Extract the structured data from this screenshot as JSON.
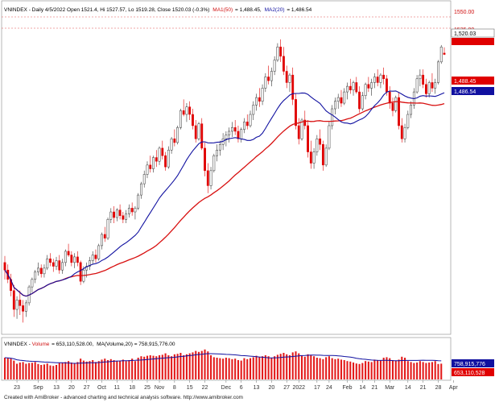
{
  "colors": {
    "up": "#ffffff",
    "down": "#e00000",
    "outline": "#333333",
    "ma50": "#d81010",
    "ma20": "#1010a0",
    "volume": "#e31a1a",
    "volume_ma": "#1010a0",
    "header_red": "#d01010",
    "header_blue": "#1010a0",
    "frame": "#888888"
  },
  "chart_data": {
    "type": "candlestick",
    "symbol": "VNINDEX",
    "period": "Daily",
    "header": {
      "prefix": "VNINDEX - Daily 4/5/2022 Open 1521.4, Hi 1527.57, Lo 1519.28, Close 1520.03 (-0.3%)",
      "ma50_label": "MA1(50)",
      "ma50_value": "= 1,488.45,",
      "ma20_label": "MA2(20)",
      "ma20_value": "= 1,486.54"
    },
    "volume_header": {
      "prefix": "VNINDEX - ",
      "vol_label": "Volume",
      "vol_value": "= 653,110,528.00,",
      "ma_text": "MA(Volume,20) = 758,915,776.00"
    },
    "y_axis": {
      "min": 1230,
      "max": 1560,
      "ref_lines": [
        1550,
        1535
      ]
    },
    "price_tags": {
      "resistance_1550": "1550.00",
      "resistance_1535": "1535.00",
      "close": "1,520.03",
      "ma50": "1,488.45",
      "ma20": "1,486.54",
      "volume_ma": "758,915,776",
      "volume": "653,110,528"
    },
    "x_labels": [
      {
        "i": 4,
        "label": "23"
      },
      {
        "i": 11,
        "label": "Sep"
      },
      {
        "i": 17,
        "label": "13"
      },
      {
        "i": 22,
        "label": "20"
      },
      {
        "i": 27,
        "label": "27"
      },
      {
        "i": 32,
        "label": "Oct"
      },
      {
        "i": 37,
        "label": "11"
      },
      {
        "i": 42,
        "label": "18"
      },
      {
        "i": 47,
        "label": "25"
      },
      {
        "i": 51,
        "label": "Nov"
      },
      {
        "i": 56,
        "label": "8"
      },
      {
        "i": 61,
        "label": "15"
      },
      {
        "i": 66,
        "label": "22"
      },
      {
        "i": 73,
        "label": "Dec"
      },
      {
        "i": 78,
        "label": "6"
      },
      {
        "i": 83,
        "label": "13"
      },
      {
        "i": 88,
        "label": "20"
      },
      {
        "i": 93,
        "label": "27"
      },
      {
        "i": 97,
        "label": "2022"
      },
      {
        "i": 103,
        "label": "17"
      },
      {
        "i": 107,
        "label": "24"
      },
      {
        "i": 113,
        "label": "Feb"
      },
      {
        "i": 118,
        "label": "14"
      },
      {
        "i": 122,
        "label": "21"
      },
      {
        "i": 127,
        "label": "Mar"
      },
      {
        "i": 133,
        "label": "14"
      },
      {
        "i": 138,
        "label": "21"
      },
      {
        "i": 143,
        "label": "28"
      },
      {
        "i": 148,
        "label": "Apr"
      }
    ],
    "candles": [
      [
        1298,
        1305,
        1280,
        1290
      ],
      [
        1290,
        1296,
        1276,
        1280
      ],
      [
        1280,
        1286,
        1262,
        1268
      ],
      [
        1268,
        1274,
        1240,
        1248
      ],
      [
        1248,
        1262,
        1238,
        1258
      ],
      [
        1258,
        1268,
        1242,
        1252
      ],
      [
        1252,
        1258,
        1234,
        1246
      ],
      [
        1246,
        1258,
        1240,
        1255
      ],
      [
        1255,
        1274,
        1252,
        1272
      ],
      [
        1272,
        1282,
        1266,
        1280
      ],
      [
        1280,
        1290,
        1276,
        1288
      ],
      [
        1288,
        1298,
        1284,
        1292
      ],
      [
        1292,
        1296,
        1282,
        1286
      ],
      [
        1286,
        1296,
        1282,
        1292
      ],
      [
        1292,
        1306,
        1290,
        1302
      ],
      [
        1302,
        1308,
        1294,
        1298
      ],
      [
        1298,
        1302,
        1288,
        1294
      ],
      [
        1294,
        1304,
        1290,
        1300
      ],
      [
        1300,
        1306,
        1286,
        1290
      ],
      [
        1290,
        1302,
        1286,
        1298
      ],
      [
        1298,
        1312,
        1294,
        1310
      ],
      [
        1310,
        1318,
        1304,
        1306
      ],
      [
        1306,
        1310,
        1294,
        1298
      ],
      [
        1298,
        1308,
        1292,
        1304
      ],
      [
        1304,
        1310,
        1294,
        1298
      ],
      [
        1298,
        1300,
        1274,
        1278
      ],
      [
        1278,
        1294,
        1276,
        1290
      ],
      [
        1290,
        1298,
        1282,
        1294
      ],
      [
        1294,
        1304,
        1290,
        1300
      ],
      [
        1300,
        1310,
        1296,
        1306
      ],
      [
        1306,
        1312,
        1298,
        1302
      ],
      [
        1302,
        1318,
        1300,
        1316
      ],
      [
        1316,
        1330,
        1312,
        1328
      ],
      [
        1328,
        1336,
        1320,
        1324
      ],
      [
        1324,
        1346,
        1322,
        1344
      ],
      [
        1344,
        1356,
        1340,
        1352
      ],
      [
        1352,
        1358,
        1340,
        1346
      ],
      [
        1346,
        1356,
        1342,
        1354
      ],
      [
        1354,
        1360,
        1344,
        1348
      ],
      [
        1348,
        1352,
        1340,
        1344
      ],
      [
        1344,
        1354,
        1340,
        1350
      ],
      [
        1350,
        1360,
        1346,
        1356
      ],
      [
        1356,
        1362,
        1348,
        1352
      ],
      [
        1352,
        1358,
        1344,
        1356
      ],
      [
        1356,
        1372,
        1354,
        1370
      ],
      [
        1370,
        1384,
        1366,
        1382
      ],
      [
        1382,
        1396,
        1378,
        1392
      ],
      [
        1392,
        1406,
        1388,
        1402
      ],
      [
        1402,
        1412,
        1394,
        1398
      ],
      [
        1398,
        1412,
        1394,
        1410
      ],
      [
        1410,
        1418,
        1400,
        1406
      ],
      [
        1406,
        1422,
        1402,
        1420
      ],
      [
        1420,
        1428,
        1408,
        1412
      ],
      [
        1412,
        1416,
        1396,
        1400
      ],
      [
        1400,
        1422,
        1398,
        1418
      ],
      [
        1418,
        1432,
        1414,
        1430
      ],
      [
        1430,
        1440,
        1422,
        1426
      ],
      [
        1426,
        1444,
        1424,
        1442
      ],
      [
        1442,
        1462,
        1440,
        1460
      ],
      [
        1460,
        1472,
        1454,
        1456
      ],
      [
        1456,
        1468,
        1448,
        1464
      ],
      [
        1464,
        1470,
        1450,
        1456
      ],
      [
        1456,
        1462,
        1440,
        1444
      ],
      [
        1444,
        1450,
        1426,
        1430
      ],
      [
        1430,
        1448,
        1428,
        1446
      ],
      [
        1446,
        1452,
        1418,
        1420
      ],
      [
        1420,
        1426,
        1390,
        1396
      ],
      [
        1396,
        1404,
        1372,
        1380
      ],
      [
        1380,
        1400,
        1376,
        1396
      ],
      [
        1396,
        1414,
        1394,
        1412
      ],
      [
        1412,
        1424,
        1406,
        1418
      ],
      [
        1418,
        1428,
        1412,
        1424
      ],
      [
        1424,
        1436,
        1418,
        1430
      ],
      [
        1430,
        1438,
        1422,
        1434
      ],
      [
        1434,
        1442,
        1426,
        1438
      ],
      [
        1438,
        1448,
        1432,
        1442
      ],
      [
        1442,
        1450,
        1434,
        1438
      ],
      [
        1438,
        1444,
        1426,
        1430
      ],
      [
        1430,
        1442,
        1426,
        1440
      ],
      [
        1440,
        1452,
        1436,
        1448
      ],
      [
        1448,
        1456,
        1440,
        1444
      ],
      [
        1444,
        1460,
        1442,
        1456
      ],
      [
        1456,
        1470,
        1450,
        1466
      ],
      [
        1466,
        1478,
        1460,
        1474
      ],
      [
        1474,
        1484,
        1464,
        1470
      ],
      [
        1470,
        1488,
        1466,
        1484
      ],
      [
        1484,
        1500,
        1480,
        1496
      ],
      [
        1496,
        1508,
        1488,
        1492
      ],
      [
        1492,
        1506,
        1486,
        1502
      ],
      [
        1502,
        1518,
        1498,
        1514
      ],
      [
        1514,
        1532,
        1512,
        1528
      ],
      [
        1528,
        1536,
        1512,
        1518
      ],
      [
        1518,
        1528,
        1498,
        1502
      ],
      [
        1502,
        1508,
        1484,
        1490
      ],
      [
        1490,
        1500,
        1480,
        1498
      ],
      [
        1498,
        1506,
        1466,
        1472
      ],
      [
        1472,
        1478,
        1440,
        1444
      ],
      [
        1444,
        1452,
        1424,
        1430
      ],
      [
        1430,
        1452,
        1428,
        1450
      ],
      [
        1450,
        1460,
        1440,
        1444
      ],
      [
        1444,
        1450,
        1410,
        1416
      ],
      [
        1416,
        1428,
        1398,
        1404
      ],
      [
        1404,
        1420,
        1398,
        1416
      ],
      [
        1416,
        1434,
        1412,
        1430
      ],
      [
        1430,
        1440,
        1418,
        1424
      ],
      [
        1424,
        1428,
        1396,
        1402
      ],
      [
        1402,
        1424,
        1400,
        1420
      ],
      [
        1420,
        1448,
        1418,
        1444
      ],
      [
        1444,
        1466,
        1440,
        1462
      ],
      [
        1462,
        1474,
        1456,
        1470
      ],
      [
        1470,
        1478,
        1462,
        1474
      ],
      [
        1474,
        1482,
        1464,
        1468
      ],
      [
        1468,
        1484,
        1466,
        1480
      ],
      [
        1480,
        1490,
        1472,
        1486
      ],
      [
        1486,
        1494,
        1478,
        1482
      ],
      [
        1482,
        1492,
        1476,
        1490
      ],
      [
        1490,
        1496,
        1478,
        1480
      ],
      [
        1480,
        1486,
        1458,
        1462
      ],
      [
        1462,
        1480,
        1460,
        1476
      ],
      [
        1476,
        1490,
        1472,
        1488
      ],
      [
        1488,
        1496,
        1480,
        1484
      ],
      [
        1484,
        1494,
        1476,
        1490
      ],
      [
        1490,
        1500,
        1484,
        1496
      ],
      [
        1496,
        1504,
        1486,
        1490
      ],
      [
        1490,
        1500,
        1484,
        1498
      ],
      [
        1498,
        1506,
        1488,
        1494
      ],
      [
        1494,
        1498,
        1476,
        1480
      ],
      [
        1480,
        1486,
        1462,
        1468
      ],
      [
        1468,
        1474,
        1454,
        1460
      ],
      [
        1460,
        1476,
        1458,
        1474
      ],
      [
        1474,
        1480,
        1440,
        1444
      ],
      [
        1444,
        1452,
        1426,
        1430
      ],
      [
        1430,
        1446,
        1426,
        1442
      ],
      [
        1442,
        1460,
        1440,
        1456
      ],
      [
        1456,
        1470,
        1452,
        1466
      ],
      [
        1466,
        1484,
        1462,
        1480
      ],
      [
        1480,
        1498,
        1478,
        1494
      ],
      [
        1494,
        1504,
        1486,
        1498
      ],
      [
        1498,
        1504,
        1484,
        1488
      ],
      [
        1488,
        1494,
        1474,
        1478
      ],
      [
        1478,
        1492,
        1474,
        1490
      ],
      [
        1490,
        1500,
        1480,
        1484
      ],
      [
        1484,
        1494,
        1478,
        1490
      ],
      [
        1490,
        1514,
        1488,
        1512
      ],
      [
        1512,
        1530,
        1510,
        1528
      ],
      [
        1521.4,
        1527.57,
        1519.28,
        1520.03
      ]
    ],
    "volume": [
      900,
      880,
      860,
      780,
      650,
      700,
      720,
      650,
      680,
      690,
      720,
      640,
      600,
      620,
      660,
      580,
      560,
      600,
      680,
      700,
      720,
      760,
      700,
      680,
      720,
      860,
      780,
      740,
      760,
      800,
      720,
      760,
      820,
      860,
      800,
      840,
      800,
      760,
      780,
      820,
      760,
      800,
      860,
      760,
      900,
      960,
      940,
      980,
      1000,
      980,
      960,
      1000,
      1020,
      1080,
      1000,
      960,
      1040,
      1060,
      1100,
      1000,
      1040,
      1080,
      1120,
      1180,
      1140,
      1180,
      1240,
      1160,
      1000,
      920,
      900,
      880,
      860,
      900,
      880,
      840,
      860,
      800,
      780,
      880,
      840,
      880,
      920,
      980,
      920,
      960,
      1000,
      960,
      900,
      960,
      1020,
      1060,
      1100,
      1040,
      1000,
      1120,
      1160,
      1080,
      980,
      940,
      1040,
      1000,
      960,
      900,
      880,
      840,
      920,
      960,
      880,
      840,
      860,
      820,
      800,
      760,
      740,
      700,
      660,
      640,
      680,
      760,
      740,
      720,
      820,
      800,
      780,
      900,
      920,
      880,
      800,
      780,
      820,
      940,
      900,
      760,
      720,
      680,
      700,
      760,
      720,
      680,
      700,
      720,
      760,
      640,
      653
    ],
    "volume_scale_max": 1300
  }
}
